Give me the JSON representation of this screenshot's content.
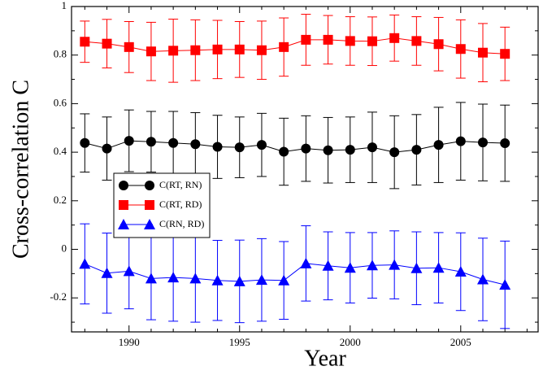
{
  "chart_data": {
    "type": "line",
    "xlabel": "Year",
    "ylabel": "Cross-correlation C",
    "x": [
      1988,
      1989,
      1990,
      1991,
      1992,
      1993,
      1994,
      1995,
      1996,
      1997,
      1998,
      1999,
      2000,
      2001,
      2002,
      2003,
      2004,
      2005,
      2006,
      2007
    ],
    "series": [
      {
        "name": "C(RT, RN)",
        "color": "#000000",
        "marker": "circle",
        "values": [
          0.438,
          0.415,
          0.447,
          0.443,
          0.438,
          0.433,
          0.422,
          0.42,
          0.43,
          0.402,
          0.415,
          0.408,
          0.41,
          0.42,
          0.4,
          0.41,
          0.43,
          0.445,
          0.44,
          0.437
        ],
        "errors": [
          0.12,
          0.13,
          0.127,
          0.125,
          0.13,
          0.13,
          0.13,
          0.125,
          0.13,
          0.138,
          0.135,
          0.135,
          0.135,
          0.145,
          0.15,
          0.145,
          0.155,
          0.16,
          0.158,
          0.157
        ]
      },
      {
        "name": "C(RT, RD)",
        "color": "#ff0000",
        "marker": "square",
        "values": [
          0.855,
          0.847,
          0.833,
          0.815,
          0.818,
          0.82,
          0.823,
          0.823,
          0.82,
          0.833,
          0.863,
          0.863,
          0.858,
          0.857,
          0.87,
          0.858,
          0.845,
          0.825,
          0.81,
          0.805
        ],
        "errors": [
          0.085,
          0.1,
          0.105,
          0.12,
          0.13,
          0.125,
          0.12,
          0.115,
          0.12,
          0.12,
          0.105,
          0.1,
          0.1,
          0.1,
          0.095,
          0.1,
          0.11,
          0.12,
          0.12,
          0.11
        ]
      },
      {
        "name": "C(RN, RD)",
        "color": "#0000ff",
        "marker": "triangle",
        "values": [
          -0.06,
          -0.098,
          -0.09,
          -0.12,
          -0.116,
          -0.12,
          -0.128,
          -0.132,
          -0.126,
          -0.128,
          -0.058,
          -0.068,
          -0.076,
          -0.066,
          -0.064,
          -0.078,
          -0.076,
          -0.092,
          -0.124,
          -0.146
        ],
        "errors": [
          0.165,
          0.165,
          0.155,
          0.17,
          0.18,
          0.18,
          0.165,
          0.17,
          0.17,
          0.16,
          0.155,
          0.14,
          0.145,
          0.135,
          0.14,
          0.15,
          0.145,
          0.16,
          0.17,
          0.18
        ]
      }
    ],
    "xlim": [
      1987.4,
      2008.5
    ],
    "xticks": [
      1990,
      1995,
      2000,
      2005
    ],
    "xminorticks": [
      1988,
      1989,
      1991,
      1992,
      1993,
      1994,
      1996,
      1997,
      1998,
      1999,
      2001,
      2002,
      2003,
      2004,
      2006,
      2007,
      2008
    ],
    "ylim": [
      -0.34,
      1.0
    ],
    "yticks": [
      -0.2,
      0,
      0.2,
      0.4,
      0.6,
      0.8,
      1
    ],
    "yminorticks": [
      -0.3,
      -0.1,
      0.1,
      0.3,
      0.5,
      0.7,
      0.9
    ],
    "legend": "center-left"
  }
}
